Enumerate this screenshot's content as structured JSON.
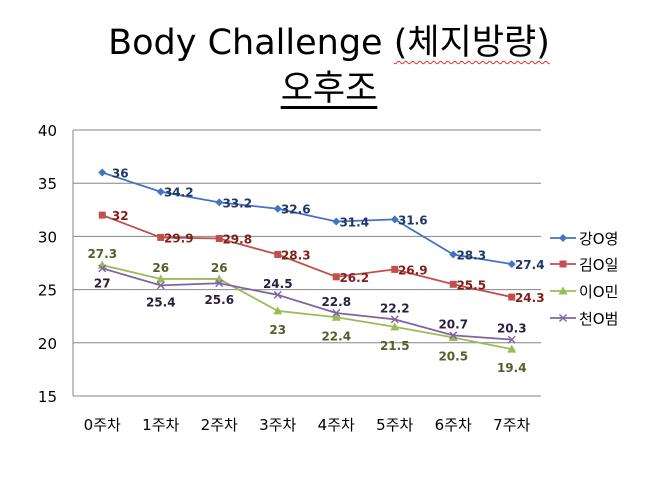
{
  "title": {
    "main": "Body Challenge",
    "paren": "(체지방량)",
    "subtitle": "오후조"
  },
  "chart_data": {
    "type": "line",
    "categories": [
      "0주차",
      "1주차",
      "2주차",
      "3주차",
      "4주차",
      "5주차",
      "6주차",
      "7주차"
    ],
    "ylim": [
      15,
      40
    ],
    "yticks": [
      15,
      20,
      25,
      30,
      35,
      40
    ],
    "grid": true,
    "legend_position": "right",
    "series": [
      {
        "name": "강O영",
        "values": [
          36,
          34.2,
          33.2,
          32.6,
          31.4,
          31.6,
          28.3,
          27.4
        ],
        "labels": [
          "36",
          "34.2",
          "33.2",
          "32.6",
          "31.4",
          "31.6",
          "28.3",
          "27.4"
        ],
        "color": "#4472c4",
        "label_color": "#1f3864",
        "marker": "diamond"
      },
      {
        "name": "김O일",
        "values": [
          32,
          29.9,
          29.8,
          28.3,
          26.2,
          26.9,
          25.5,
          24.3
        ],
        "labels": [
          "32",
          "29.9",
          "29.8",
          "28.3",
          "26.2",
          "26.9",
          "25.5",
          "24.3"
        ],
        "color": "#c0504d",
        "label_color": "#7f1f1c",
        "marker": "square"
      },
      {
        "name": "이O민",
        "values": [
          27.3,
          26,
          26,
          23,
          22.4,
          21.5,
          20.5,
          19.4
        ],
        "labels": [
          "27.3",
          "26",
          "26",
          "23",
          "22.4",
          "21.5",
          "20.5",
          "19.4"
        ],
        "color": "#9bbb59",
        "label_color": "#4f6228",
        "marker": "triangle"
      },
      {
        "name": "천O범",
        "values": [
          27,
          25.4,
          25.6,
          24.5,
          22.8,
          22.2,
          20.7,
          20.3
        ],
        "labels": [
          "27",
          "25.4",
          "25.6",
          "24.5",
          "22.8",
          "22.2",
          "20.7",
          "20.3"
        ],
        "color": "#8064a2",
        "label_color": "#2a1f3d",
        "marker": "x"
      }
    ]
  }
}
